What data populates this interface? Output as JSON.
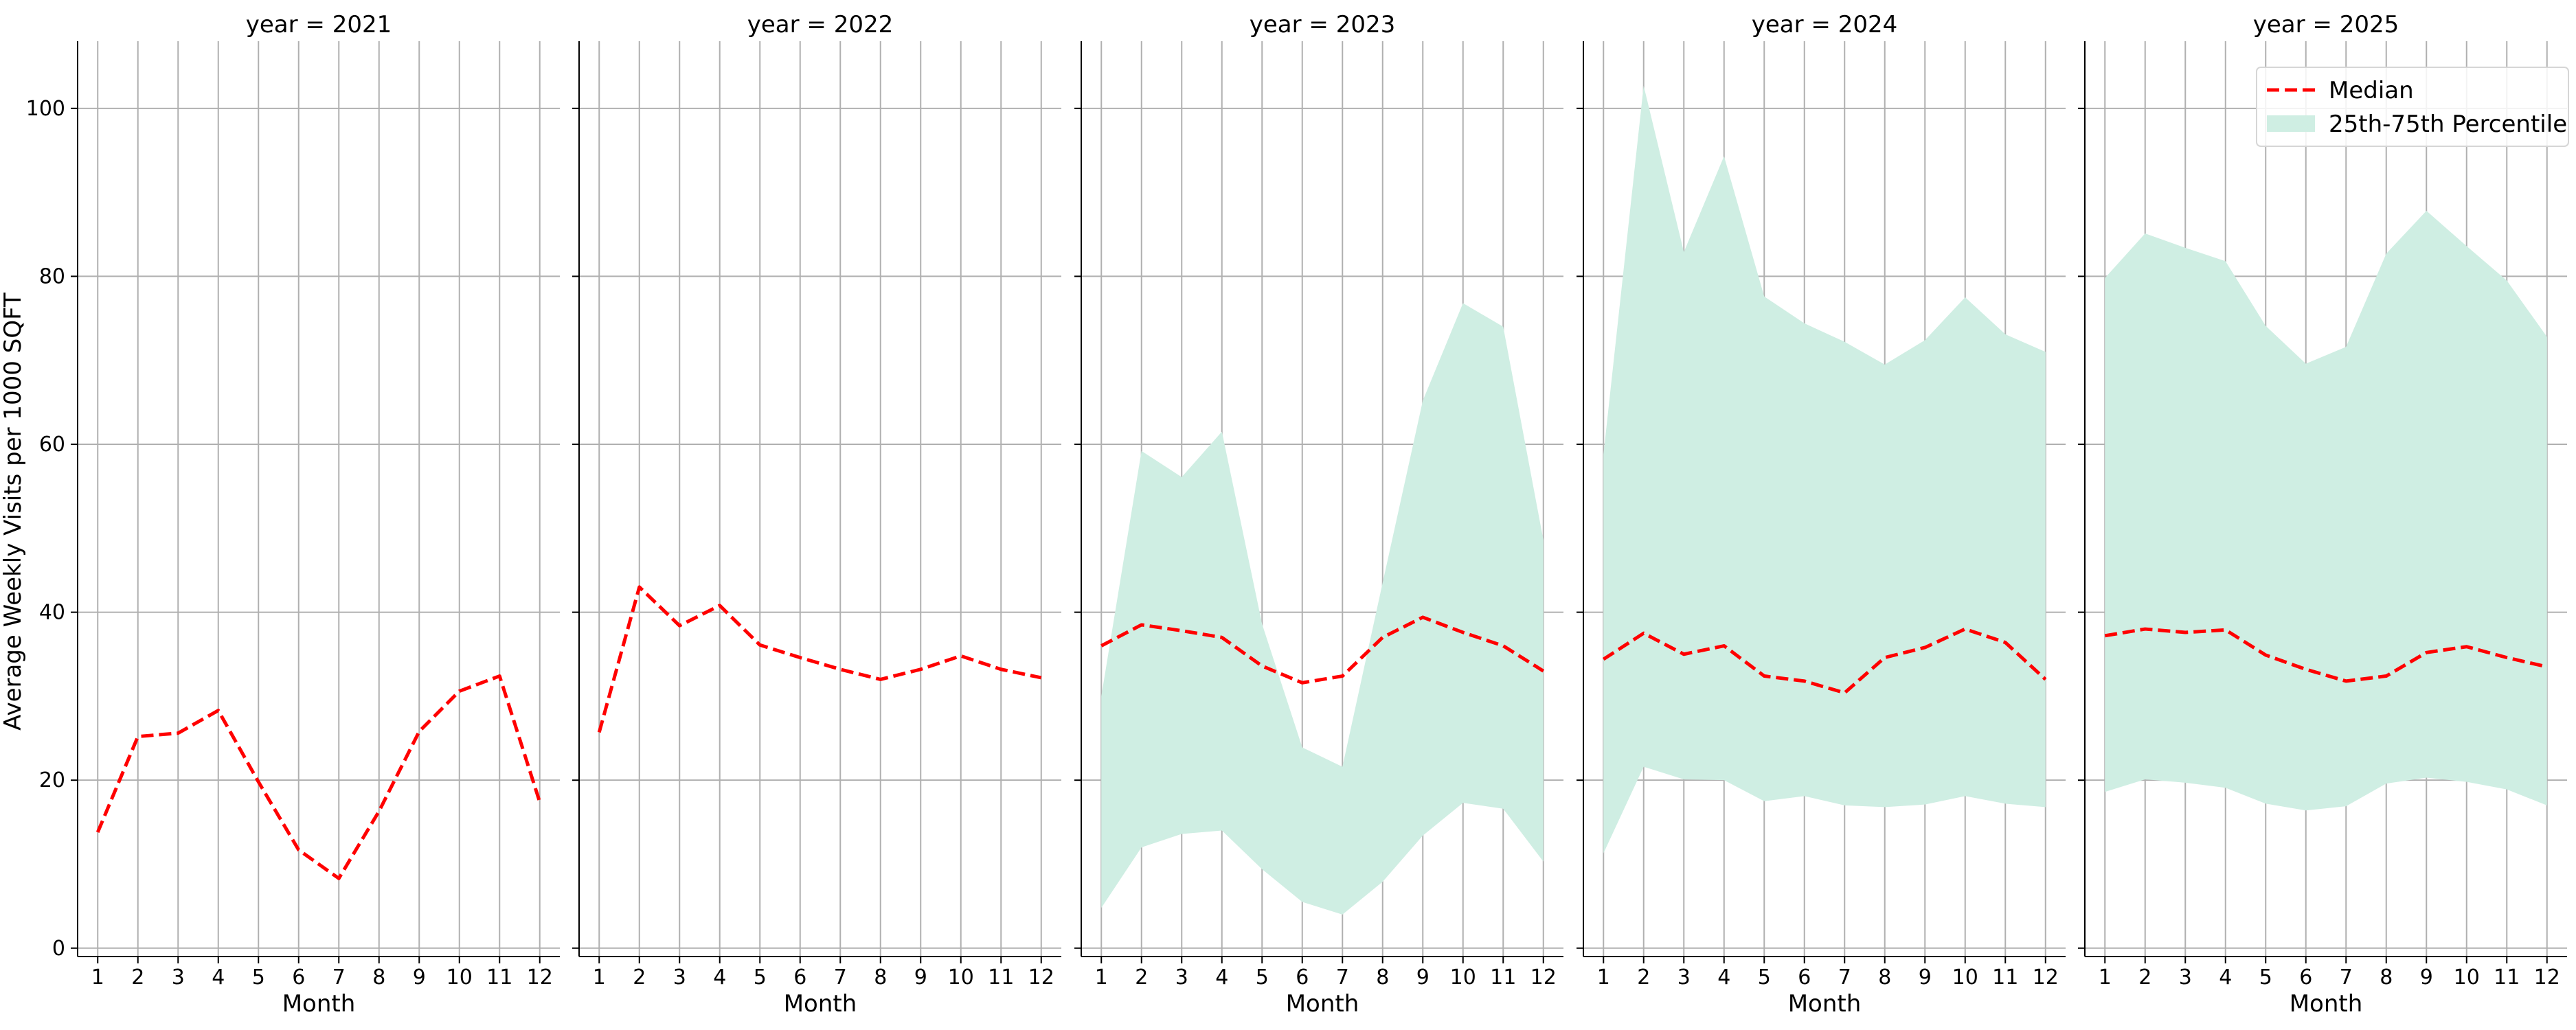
{
  "chart_data": {
    "type": "line",
    "facet_by": "year",
    "ylabel": "Average Weekly Visits per 1000 SQFT",
    "xlabel": "Month",
    "x": [
      1,
      2,
      3,
      4,
      5,
      6,
      7,
      8,
      9,
      10,
      11,
      12
    ],
    "x_ticks": [
      "1",
      "2",
      "3",
      "4",
      "5",
      "6",
      "7",
      "8",
      "9",
      "10",
      "11",
      "12"
    ],
    "xlim": [
      0.5,
      12.5
    ],
    "ylim": [
      -1,
      108
    ],
    "y_ticks": [
      0,
      20,
      40,
      60,
      80,
      100
    ],
    "grid": true,
    "legend": {
      "placement": "top-right",
      "median_label": "Median",
      "band_label": "25th-75th Percentile"
    },
    "colors": {
      "median": "#ff0000",
      "band": "#cfeee3"
    },
    "panels": [
      {
        "title": "year = 2021",
        "median": [
          13.8,
          25.2,
          25.6,
          28.3,
          19.8,
          11.7,
          8.3,
          16.3,
          25.8,
          30.6,
          32.4,
          17.4
        ],
        "p25": null,
        "p75": null
      },
      {
        "title": "year = 2022",
        "median": [
          25.7,
          43.0,
          38.4,
          40.8,
          36.1,
          34.6,
          33.2,
          32.0,
          33.2,
          34.8,
          33.2,
          32.2
        ],
        "p25": null,
        "p75": null
      },
      {
        "title": "year = 2023",
        "median": [
          36.0,
          38.5,
          37.8,
          37.0,
          33.6,
          31.6,
          32.4,
          37.0,
          39.4,
          37.6,
          36.0,
          33.0
        ],
        "p25": [
          4.8,
          12.0,
          13.6,
          14.0,
          9.4,
          5.5,
          4.0,
          7.9,
          13.4,
          17.3,
          16.6,
          10.3
        ],
        "p75": [
          30.0,
          59.2,
          56.1,
          61.5,
          38.6,
          23.9,
          21.6,
          43.5,
          65.2,
          76.8,
          74.0,
          48.6
        ]
      },
      {
        "title": "year = 2024",
        "median": [
          34.4,
          37.5,
          35.0,
          36.0,
          32.4,
          31.8,
          30.4,
          34.6,
          35.8,
          38.0,
          36.4,
          32.0
        ],
        "p25": [
          11.3,
          21.6,
          20.1,
          20.0,
          17.5,
          18.1,
          17.0,
          16.8,
          17.1,
          18.1,
          17.2,
          16.8
        ],
        "p75": [
          58.8,
          102.7,
          82.9,
          94.3,
          77.6,
          74.4,
          72.2,
          69.5,
          72.4,
          77.5,
          73.1,
          71.0
        ]
      },
      {
        "title": "year = 2025",
        "median": [
          37.2,
          38.0,
          37.6,
          37.9,
          34.9,
          33.2,
          31.8,
          32.4,
          35.2,
          35.9,
          34.6,
          33.5
        ],
        "p25": [
          18.6,
          20.1,
          19.7,
          19.1,
          17.2,
          16.4,
          16.9,
          19.6,
          20.3,
          19.8,
          18.9,
          17.0
        ],
        "p75": [
          79.8,
          85.1,
          83.4,
          81.8,
          74.1,
          69.6,
          71.6,
          82.7,
          87.8,
          83.6,
          79.5,
          72.8
        ]
      }
    ]
  }
}
